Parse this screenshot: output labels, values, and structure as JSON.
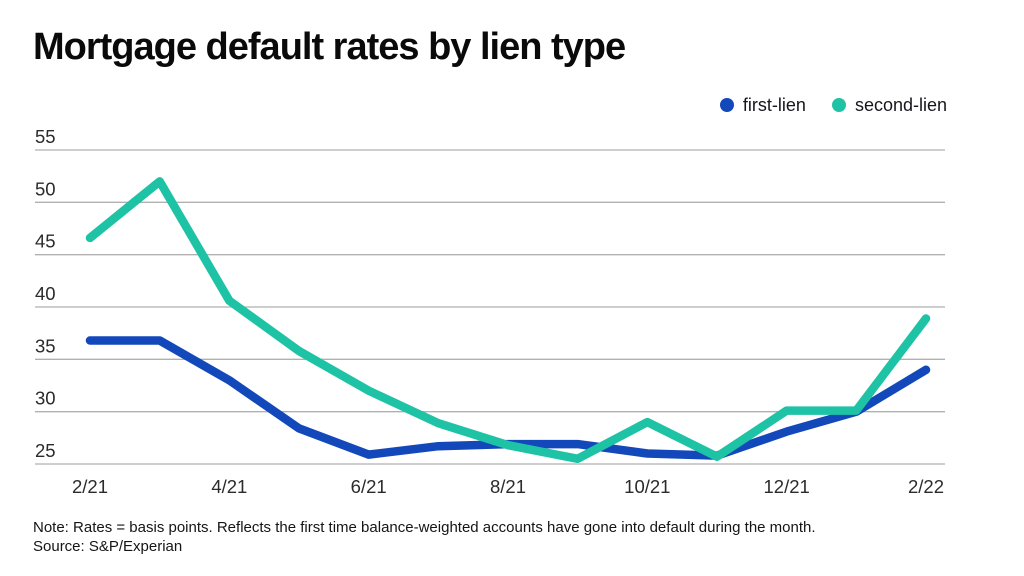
{
  "title": "Mortgage default rates by lien type",
  "note": "Note: Rates = basis points. Reflects the first time balance-weighted accounts have gone into default during the month.",
  "source": "Source: S&P/Experian",
  "colors": {
    "first_lien": "#1348bb",
    "second_lien": "#1ec3a5",
    "gridline": "#b0b0b0",
    "axis_text": "#2b2b2b"
  },
  "chart_data": {
    "type": "line",
    "title": "Mortgage default rates by lien type",
    "categories": [
      "2/21",
      "3/21",
      "4/21",
      "5/21",
      "6/21",
      "7/21",
      "8/21",
      "9/21",
      "10/21",
      "11/21",
      "12/21",
      "1/22",
      "2/22"
    ],
    "x_tick_labels": [
      "2/21",
      "4/21",
      "6/21",
      "8/21",
      "10/21",
      "12/21",
      "2/22"
    ],
    "y_ticks": [
      25,
      30,
      35,
      40,
      45,
      50,
      55
    ],
    "ylim": [
      25,
      55
    ],
    "grid": "horizontal",
    "legend_position": "top-right",
    "series": [
      {
        "name": "first-lien",
        "color": "#1348bb",
        "values": [
          36.8,
          36.8,
          33.0,
          28.4,
          25.9,
          26.7,
          26.9,
          26.9,
          26.0,
          25.8,
          28.1,
          30.0,
          34.0
        ]
      },
      {
        "name": "second-lien",
        "color": "#1ec3a5",
        "values": [
          46.6,
          52.0,
          40.6,
          35.8,
          32.0,
          28.9,
          26.8,
          25.5,
          29.0,
          25.7,
          30.1,
          30.1,
          38.9
        ]
      }
    ]
  }
}
